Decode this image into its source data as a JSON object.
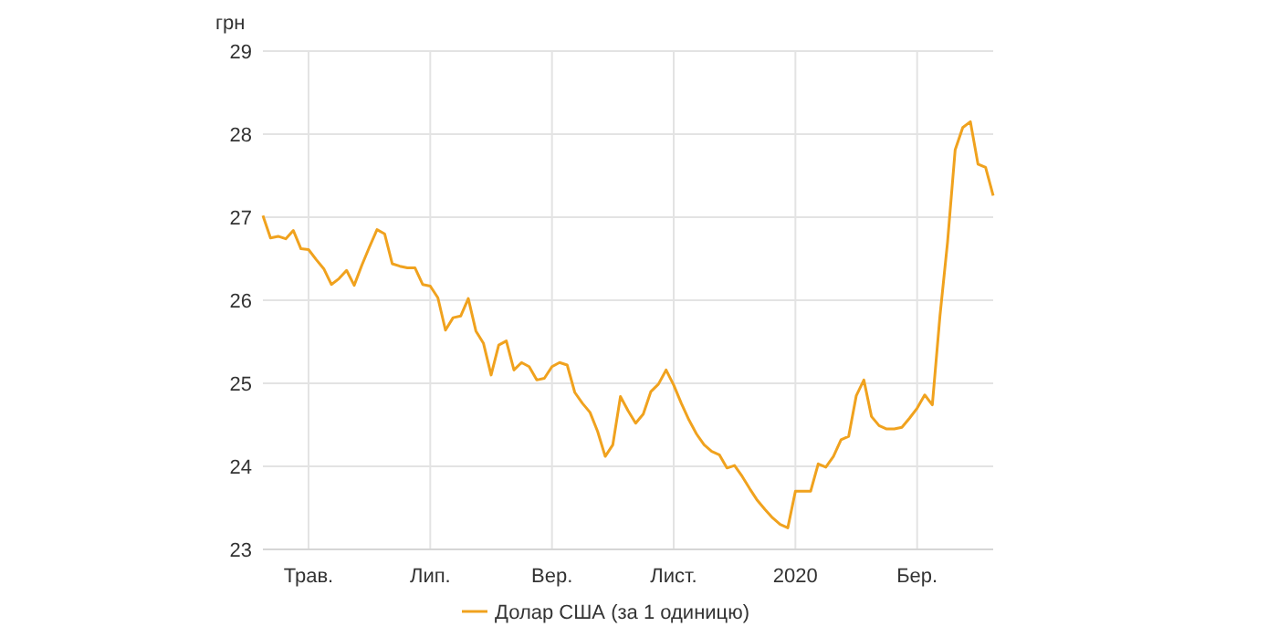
{
  "chart_data": {
    "type": "line",
    "ylabel": "грн",
    "legend": "bottom",
    "grid": true,
    "marker": "none",
    "line_style": "solid",
    "categories": [
      null,
      null,
      null,
      null,
      null,
      null,
      "Трав.",
      null,
      null,
      null,
      null,
      null,
      null,
      null,
      null,
      null,
      null,
      null,
      null,
      null,
      null,
      null,
      "Лип.",
      null,
      null,
      null,
      null,
      null,
      null,
      null,
      null,
      null,
      null,
      null,
      null,
      null,
      null,
      null,
      "Вер.",
      null,
      null,
      null,
      null,
      null,
      null,
      null,
      null,
      null,
      null,
      null,
      null,
      null,
      null,
      null,
      "Лист.",
      null,
      null,
      null,
      null,
      null,
      null,
      null,
      null,
      null,
      null,
      null,
      null,
      null,
      null,
      null,
      "2020",
      null,
      null,
      null,
      null,
      null,
      null,
      null,
      null,
      null,
      null,
      null,
      null,
      null,
      null,
      null,
      "Бер.",
      null,
      null,
      null,
      null,
      null,
      null,
      null,
      null,
      null,
      null
    ],
    "ylim": [
      23,
      29
    ],
    "yticks": [
      23,
      24,
      25,
      26,
      27,
      28,
      29
    ],
    "series": [
      {
        "name": "Долар США (за 1 одиницю)",
        "color": "#f0a21e",
        "values": [
          27.02,
          26.75,
          26.77,
          26.74,
          26.84,
          26.62,
          26.61,
          26.49,
          26.38,
          26.19,
          26.26,
          26.36,
          26.18,
          26.42,
          26.64,
          26.85,
          26.8,
          26.44,
          26.41,
          26.39,
          26.39,
          26.19,
          26.17,
          26.03,
          25.64,
          25.79,
          25.81,
          26.02,
          25.63,
          25.48,
          25.1,
          25.46,
          25.51,
          25.16,
          25.25,
          25.2,
          25.04,
          25.06,
          25.2,
          25.25,
          25.22,
          24.89,
          24.76,
          24.65,
          24.42,
          24.12,
          24.26,
          24.84,
          24.67,
          24.52,
          24.63,
          24.9,
          24.99,
          25.16,
          24.98,
          24.76,
          24.56,
          24.39,
          24.26,
          24.18,
          24.14,
          23.98,
          24.01,
          23.88,
          23.73,
          23.59,
          23.48,
          23.38,
          23.3,
          23.26,
          23.7,
          23.7,
          23.7,
          24.03,
          23.99,
          24.12,
          24.32,
          24.36,
          24.85,
          25.04,
          24.6,
          24.49,
          24.45,
          24.45,
          24.47,
          24.58,
          24.7,
          24.86,
          24.74,
          25.81,
          26.7,
          27.81,
          28.08,
          28.15,
          27.64,
          27.6,
          27.26
        ]
      }
    ]
  }
}
